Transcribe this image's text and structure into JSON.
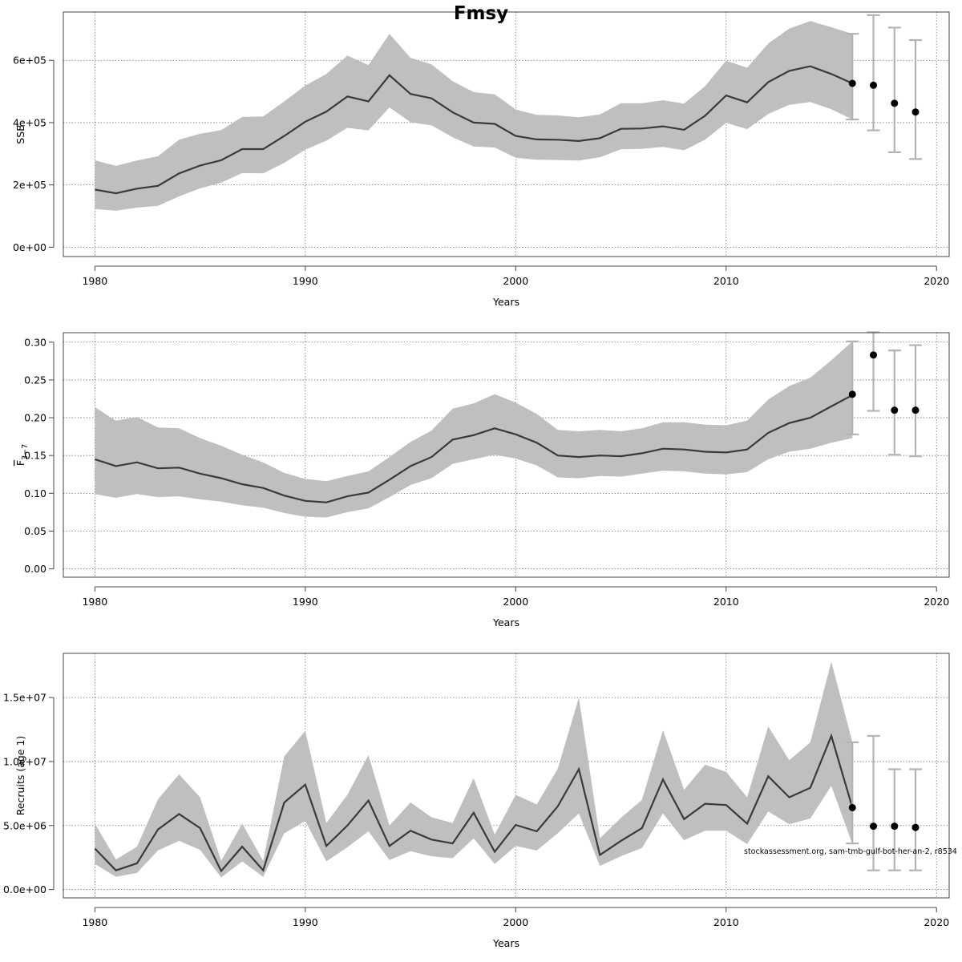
{
  "figure_title": "Fmsy",
  "credit": "stockassessment.org, sam-tmb-gulf-bot-her-an-2, r8534",
  "colors": {
    "band": "#bfbfbf",
    "line": "#3a3a3a",
    "errorbar": "#b3b3b3",
    "point": "#000000"
  },
  "chart_data": [
    {
      "type": "line",
      "panel": "ssb",
      "xlabel": "Years",
      "ylabel": "SSB",
      "xlim": [
        1978.5,
        2020.6
      ],
      "ylim": [
        -30000,
        755000
      ],
      "xticks": [
        1980,
        1990,
        2000,
        2010,
        2020
      ],
      "xtick_labels": [
        "1980",
        "1990",
        "2000",
        "2010",
        "2020"
      ],
      "yticks": [
        0,
        200000,
        400000,
        600000
      ],
      "ytick_labels": [
        "0e+00",
        "2e+05",
        "4e+05",
        "6e+05"
      ],
      "grid": true,
      "x": [
        1980,
        1981,
        1982,
        1983,
        1984,
        1985,
        1986,
        1987,
        1988,
        1989,
        1990,
        1991,
        1992,
        1993,
        1994,
        1995,
        1996,
        1997,
        1998,
        1999,
        2000,
        2001,
        2002,
        2003,
        2004,
        2005,
        2006,
        2007,
        2008,
        2009,
        2010,
        2011,
        2012,
        2013,
        2014,
        2015,
        2016
      ],
      "y": [
        185000,
        173000,
        188000,
        197000,
        237000,
        262000,
        279000,
        315000,
        315000,
        357000,
        403000,
        435000,
        484000,
        468000,
        552000,
        492000,
        478000,
        433000,
        400000,
        396000,
        357000,
        346000,
        345000,
        341000,
        350000,
        380000,
        381000,
        388000,
        377000,
        422000,
        487000,
        465000,
        530000,
        566000,
        581000,
        556000,
        526000
      ],
      "lower": [
        123000,
        117000,
        127000,
        133000,
        163000,
        189000,
        207000,
        238000,
        237000,
        271000,
        313000,
        342000,
        383000,
        375000,
        449000,
        401000,
        391000,
        353000,
        323000,
        320000,
        287000,
        281000,
        280000,
        278000,
        289000,
        314000,
        316000,
        322000,
        311000,
        345000,
        399000,
        379000,
        428000,
        457000,
        466000,
        443000,
        410000
      ],
      "upper": [
        279000,
        261000,
        278000,
        292000,
        345000,
        364000,
        376000,
        418000,
        420000,
        468000,
        519000,
        556000,
        615000,
        585000,
        685000,
        608000,
        587000,
        533000,
        498000,
        491000,
        442000,
        425000,
        423000,
        417000,
        426000,
        462000,
        462000,
        472000,
        461000,
        517000,
        599000,
        576000,
        654000,
        702000,
        726000,
        706000,
        685000
      ],
      "forecast": {
        "x": [
          2016,
          2017,
          2018,
          2019
        ],
        "y": [
          526000,
          520000,
          462000,
          434000
        ],
        "lower": [
          410000,
          375000,
          305000,
          283000
        ],
        "upper": [
          685000,
          745000,
          705000,
          665000
        ]
      }
    },
    {
      "type": "line",
      "panel": "fbar",
      "xlabel": "Years",
      "ylabel": "F",
      "ylabel_sub": "3−7",
      "xlim": [
        1978.5,
        2020.6
      ],
      "ylim": [
        -0.011,
        0.3125
      ],
      "xticks": [
        1980,
        1990,
        2000,
        2010,
        2020
      ],
      "xtick_labels": [
        "1980",
        "1990",
        "2000",
        "2010",
        "2020"
      ],
      "yticks": [
        0,
        0.05,
        0.1,
        0.15,
        0.2,
        0.25,
        0.3
      ],
      "ytick_labels": [
        "0.00",
        "0.05",
        "0.10",
        "0.15",
        "0.20",
        "0.25",
        "0.30"
      ],
      "grid": true,
      "x": [
        1980,
        1981,
        1982,
        1983,
        1984,
        1985,
        1986,
        1987,
        1988,
        1989,
        1990,
        1991,
        1992,
        1993,
        1994,
        1995,
        1996,
        1997,
        1998,
        1999,
        2000,
        2001,
        2002,
        2003,
        2004,
        2005,
        2006,
        2007,
        2008,
        2009,
        2010,
        2011,
        2012,
        2013,
        2014,
        2015,
        2016
      ],
      "y": [
        0.145,
        0.136,
        0.141,
        0.133,
        0.134,
        0.126,
        0.12,
        0.112,
        0.107,
        0.097,
        0.09,
        0.088,
        0.096,
        0.101,
        0.118,
        0.136,
        0.148,
        0.171,
        0.177,
        0.186,
        0.178,
        0.167,
        0.15,
        0.148,
        0.15,
        0.149,
        0.153,
        0.159,
        0.158,
        0.155,
        0.154,
        0.158,
        0.18,
        0.193,
        0.2,
        0.215,
        0.23
      ],
      "lower": [
        0.099,
        0.094,
        0.099,
        0.095,
        0.096,
        0.092,
        0.089,
        0.084,
        0.081,
        0.074,
        0.069,
        0.068,
        0.075,
        0.08,
        0.095,
        0.111,
        0.12,
        0.139,
        0.145,
        0.151,
        0.146,
        0.137,
        0.121,
        0.12,
        0.123,
        0.122,
        0.126,
        0.13,
        0.129,
        0.126,
        0.125,
        0.128,
        0.145,
        0.155,
        0.159,
        0.167,
        0.173
      ],
      "upper": [
        0.214,
        0.196,
        0.201,
        0.187,
        0.186,
        0.173,
        0.163,
        0.151,
        0.141,
        0.127,
        0.119,
        0.116,
        0.123,
        0.129,
        0.148,
        0.168,
        0.183,
        0.212,
        0.219,
        0.231,
        0.22,
        0.205,
        0.184,
        0.182,
        0.184,
        0.182,
        0.186,
        0.194,
        0.194,
        0.191,
        0.19,
        0.196,
        0.224,
        0.242,
        0.253,
        0.276,
        0.301
      ],
      "forecast": {
        "x": [
          2016,
          2017,
          2018,
          2019
        ],
        "y": [
          0.231,
          0.283,
          0.21,
          0.21
        ],
        "lower": [
          0.178,
          0.209,
          0.151,
          0.149
        ],
        "upper": [
          0.301,
          0.313,
          0.289,
          0.296
        ]
      }
    },
    {
      "type": "line",
      "panel": "recruits",
      "xlabel": "Years",
      "ylabel": "Recruits (age 1)",
      "xlim": [
        1978.5,
        2020.6
      ],
      "ylim": [
        -650000,
        18450000
      ],
      "xticks": [
        1980,
        1990,
        2000,
        2010,
        2020
      ],
      "xtick_labels": [
        "1980",
        "1990",
        "2000",
        "2010",
        "2020"
      ],
      "yticks": [
        0,
        5000000,
        10000000,
        15000000
      ],
      "ytick_labels": [
        "0.0e+00",
        "5.0e+06",
        "1.0e+07",
        "1.5e+07"
      ],
      "grid": true,
      "x": [
        1980,
        1981,
        1982,
        1983,
        1984,
        1985,
        1986,
        1987,
        1988,
        1989,
        1990,
        1991,
        1992,
        1993,
        1994,
        1995,
        1996,
        1997,
        1998,
        1999,
        2000,
        2001,
        2002,
        2003,
        2004,
        2005,
        2006,
        2007,
        2008,
        2009,
        2010,
        2011,
        2012,
        2013,
        2014,
        2015,
        2016
      ],
      "y": [
        3200000,
        1500000,
        2050000,
        4700000,
        5900000,
        4800000,
        1450000,
        3350000,
        1500000,
        6800000,
        8200000,
        3400000,
        5000000,
        6950000,
        3400000,
        4600000,
        3900000,
        3600000,
        6000000,
        2950000,
        5050000,
        4550000,
        6500000,
        9400000,
        2700000,
        3800000,
        4800000,
        8600000,
        5500000,
        6700000,
        6600000,
        5150000,
        8850000,
        7200000,
        7950000,
        12000000,
        6400000
      ],
      "lower": [
        2000000,
        1000000,
        1300000,
        3050000,
        3800000,
        3100000,
        950000,
        2200000,
        1000000,
        4400000,
        5350000,
        2200000,
        3300000,
        4550000,
        2300000,
        3000000,
        2600000,
        2450000,
        4000000,
        2000000,
        3400000,
        3050000,
        4400000,
        5950000,
        1850000,
        2600000,
        3250000,
        5950000,
        3850000,
        4600000,
        4600000,
        3550000,
        6100000,
        5100000,
        5550000,
        8100000,
        3550000
      ],
      "upper": [
        5150000,
        2350000,
        3350000,
        7050000,
        9000000,
        7200000,
        2250000,
        5150000,
        2250000,
        10400000,
        12400000,
        5200000,
        7400000,
        10500000,
        5000000,
        6800000,
        5650000,
        5200000,
        8700000,
        4300000,
        7400000,
        6650000,
        9450000,
        15000000,
        4000000,
        5600000,
        7000000,
        12450000,
        7800000,
        9750000,
        9200000,
        7200000,
        12750000,
        10100000,
        11500000,
        17800000,
        11500000
      ],
      "forecast": {
        "x": [
          2016,
          2017,
          2018,
          2019
        ],
        "y": [
          6400000,
          4950000,
          4950000,
          4850000
        ],
        "lower": [
          3600000,
          1500000,
          1500000,
          1500000
        ],
        "upper": [
          11500000,
          12000000,
          9400000,
          9400000
        ]
      }
    }
  ]
}
